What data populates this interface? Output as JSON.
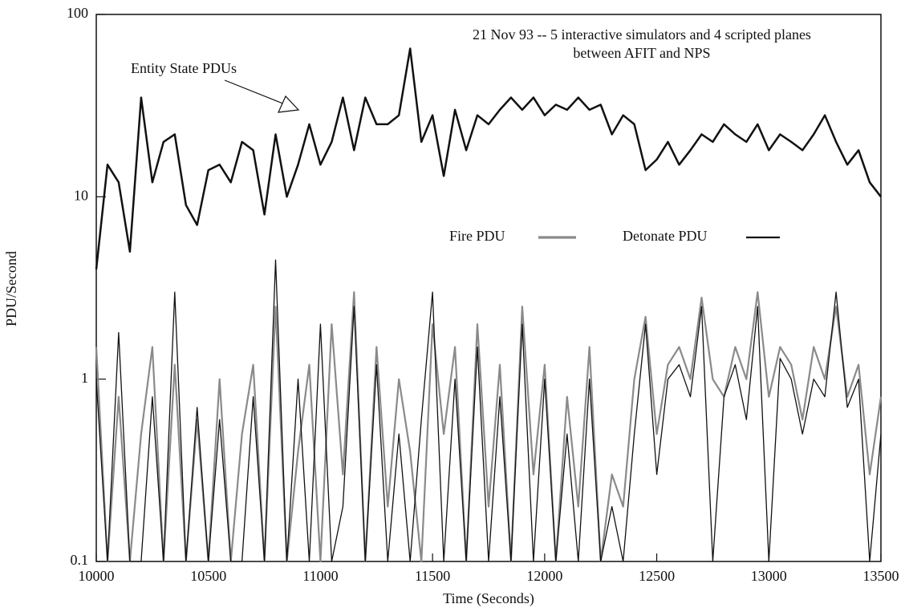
{
  "chart_data": {
    "type": "line",
    "annotations": [
      "21 Nov 93 -- 5 interactive simulators and 4 scripted planes",
      "between AFIT and NPS",
      "Entity State PDUs"
    ],
    "xlabel": "Time (Seconds)",
    "ylabel": "PDU/Second",
    "log_y": true,
    "xlim": [
      10000,
      13500
    ],
    "xticks": [
      10000,
      10500,
      11000,
      11500,
      12000,
      12500,
      13000,
      13500
    ],
    "ylim": [
      0.1,
      100
    ],
    "yticks": [
      0.1,
      1,
      10,
      100
    ],
    "x": [
      10000,
      10050,
      10100,
      10150,
      10200,
      10250,
      10300,
      10350,
      10400,
      10450,
      10500,
      10550,
      10600,
      10650,
      10700,
      10750,
      10800,
      10850,
      10900,
      10950,
      11000,
      11050,
      11100,
      11150,
      11200,
      11250,
      11300,
      11350,
      11400,
      11450,
      11500,
      11550,
      11600,
      11650,
      11700,
      11750,
      11800,
      11850,
      11900,
      11950,
      12000,
      12050,
      12100,
      12150,
      12200,
      12250,
      12300,
      12350,
      12400,
      12450,
      12500,
      12550,
      12600,
      12650,
      12700,
      12750,
      12800,
      12850,
      12900,
      12950,
      13000,
      13050,
      13100,
      13150,
      13200,
      13250,
      13300,
      13350,
      13400,
      13450,
      13500
    ],
    "series": [
      {
        "name": "Entity State PDUs",
        "color": "#111111",
        "width": 2.5,
        "values": [
          4,
          15,
          12,
          5,
          35,
          12,
          20,
          22,
          9,
          7,
          14,
          15,
          12,
          20,
          18,
          8,
          22,
          10,
          15,
          25,
          15,
          20,
          35,
          18,
          35,
          25,
          25,
          28,
          65,
          20,
          28,
          13,
          30,
          18,
          28,
          25,
          30,
          35,
          30,
          35,
          28,
          32,
          30,
          35,
          30,
          32,
          22,
          28,
          25,
          14,
          16,
          20,
          15,
          18,
          22,
          20,
          25,
          22,
          20,
          25,
          18,
          22,
          20,
          18,
          22,
          28,
          20,
          15,
          18,
          12,
          10
        ]
      },
      {
        "name": "Fire PDU",
        "color": "#8a8a8a",
        "width": 2.2,
        "values": [
          1.5,
          0.1,
          0.8,
          0.1,
          0.5,
          1.5,
          0.1,
          1.2,
          0.1,
          0.6,
          0.1,
          1,
          0.1,
          0.5,
          1.2,
          0.1,
          2.5,
          0.1,
          0.4,
          1.2,
          0.1,
          2,
          0.3,
          3,
          0.1,
          1.5,
          0.2,
          1,
          0.4,
          0.1,
          2,
          0.5,
          1.5,
          0.1,
          2,
          0.2,
          1.2,
          0.1,
          2.5,
          0.3,
          1.2,
          0.1,
          0.8,
          0.2,
          1.5,
          0.1,
          0.3,
          0.2,
          1,
          2.2,
          0.5,
          1.2,
          1.5,
          1,
          2.8,
          1,
          0.8,
          1.5,
          1,
          3,
          0.8,
          1.5,
          1.2,
          0.6,
          1.5,
          1,
          2.5,
          0.8,
          1.2,
          0.3,
          0.8
        ]
      },
      {
        "name": "Detonate PDU",
        "color": "#111111",
        "width": 1.3,
        "values": [
          1,
          0.1,
          1.8,
          0.1,
          0.1,
          0.8,
          0.1,
          3,
          0.1,
          0.7,
          0.1,
          0.6,
          0.1,
          0.1,
          0.8,
          0.1,
          4.5,
          0.1,
          1,
          0.1,
          2,
          0.1,
          0.2,
          2.5,
          0.1,
          1.2,
          0.1,
          0.5,
          0.1,
          0.6,
          3,
          0.1,
          1,
          0.1,
          1.5,
          0.1,
          0.8,
          0.1,
          2,
          0.1,
          1,
          0.1,
          0.5,
          0.1,
          1,
          0.1,
          0.2,
          0.1,
          0.5,
          2,
          0.3,
          1,
          1.2,
          0.8,
          2.5,
          0.1,
          0.8,
          1.2,
          0.6,
          2.5,
          0.1,
          1.3,
          1,
          0.5,
          1,
          0.8,
          3,
          0.7,
          1,
          0.1,
          0.5
        ]
      }
    ]
  }
}
